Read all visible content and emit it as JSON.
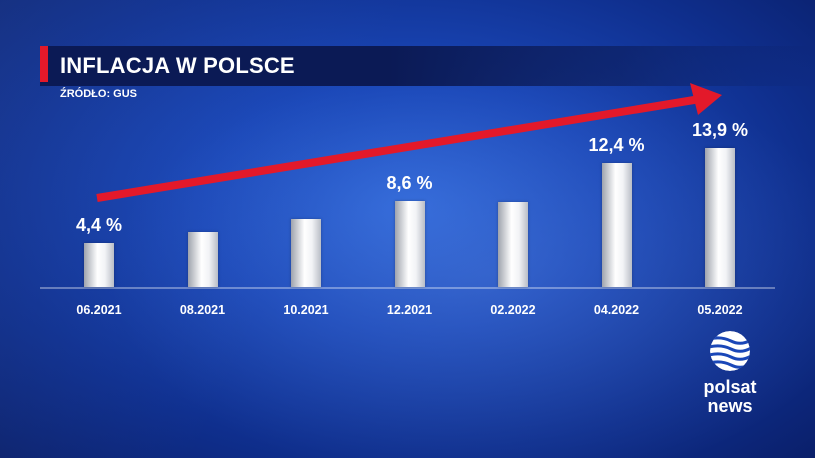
{
  "header": {
    "title": "INFLACJA W POLSCE",
    "source": "ŹRÓDŁO: GUS"
  },
  "chart_data": {
    "type": "bar",
    "title": "INFLACJA W POLSCE",
    "categories": [
      "06.2021",
      "08.2021",
      "10.2021",
      "12.2021",
      "02.2022",
      "04.2022",
      "05.2022"
    ],
    "values": [
      4.4,
      5.5,
      6.8,
      8.6,
      8.5,
      12.4,
      13.9
    ],
    "labels": [
      "4,4 %",
      "",
      "",
      "8,6 %",
      "",
      "12,4 %",
      "13,9 %"
    ],
    "ylim": [
      0,
      15
    ],
    "grid": false,
    "trend_arrow": true
  },
  "colors": {
    "accent": "#e3192a",
    "background": "#1a47b8",
    "bar": "#ffffff"
  },
  "logo": {
    "line1": "polsat",
    "line2": "news",
    "icon": "polsat-news-logo-icon"
  }
}
